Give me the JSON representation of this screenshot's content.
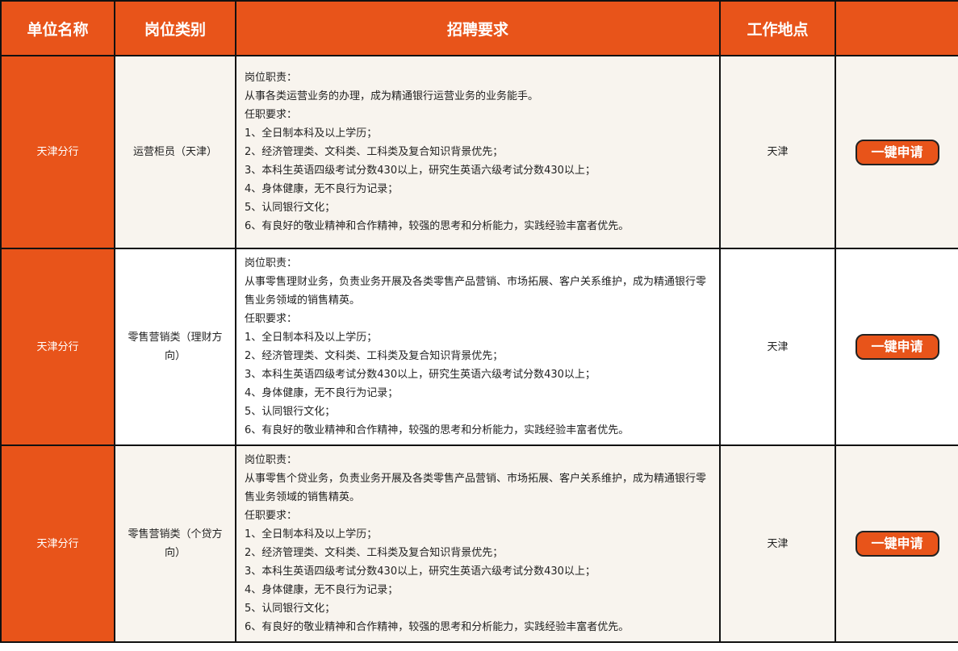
{
  "header": [
    "单位名称",
    "岗位类别",
    "招聘要求",
    "工作地点",
    ""
  ],
  "rows": [
    {
      "unit": "天津分行",
      "category": "运营柜员（天津）",
      "lines": [
        "岗位职责：",
        "从事各类运营业务的办理，成为精通银行运营业务的业务能手。",
        "任职要求：",
        "1、全日制本科及以上学历；",
        "2、经济管理类、文科类、工科类及复合知识背景优先；",
        "3、本科生英语四级考试分数430以上，研究生英语六级考试分数430以上；",
        "4、身体健康，无不良行为记录；",
        "5、认同银行文化；",
        "6、有良好的敬业精神和合作精神，较强的思考和分析能力，实践经验丰富者优先。"
      ],
      "location": "天津",
      "button": "一键申请"
    },
    {
      "unit": "天津分行",
      "category": "零售营销类（理财方向）",
      "lines": [
        "岗位职责：",
        "从事零售理财业务，负责业务开展及各类零售产品营销、市场拓展、客户关系维护，成为精通银行零售业务领域的销售精英。",
        "任职要求：",
        "1、全日制本科及以上学历；",
        "2、经济管理类、文科类、工科类及复合知识背景优先；",
        "3、本科生英语四级考试分数430以上，研究生英语六级考试分数430以上；",
        "4、身体健康，无不良行为记录；",
        "5、认同银行文化；",
        "6、有良好的敬业精神和合作精神，较强的思考和分析能力，实践经验丰富者优先。"
      ],
      "location": "天津",
      "button": "一键申请"
    },
    {
      "unit": "天津分行",
      "category": "零售营销类（个贷方向）",
      "lines": [
        "岗位职责：",
        "从事零售个贷业务，负责业务开展及各类零售产品营销、市场拓展、客户关系维护，成为精通银行零售业务领域的销售精英。",
        "任职要求：",
        "1、全日制本科及以上学历；",
        "2、经济管理类、文科类、工科类及复合知识背景优先；",
        "3、本科生英语四级考试分数430以上，研究生英语六级考试分数430以上；",
        "4、身体健康，无不良行为记录；",
        "5、认同银行文化；",
        "6、有良好的敬业精神和合作精神，较强的思考和分析能力，实践经验丰富者优先。"
      ],
      "location": "天津",
      "button": "一键申请"
    }
  ],
  "colors": {
    "accent": "#e8541a",
    "cream": "#f8f4ee"
  }
}
